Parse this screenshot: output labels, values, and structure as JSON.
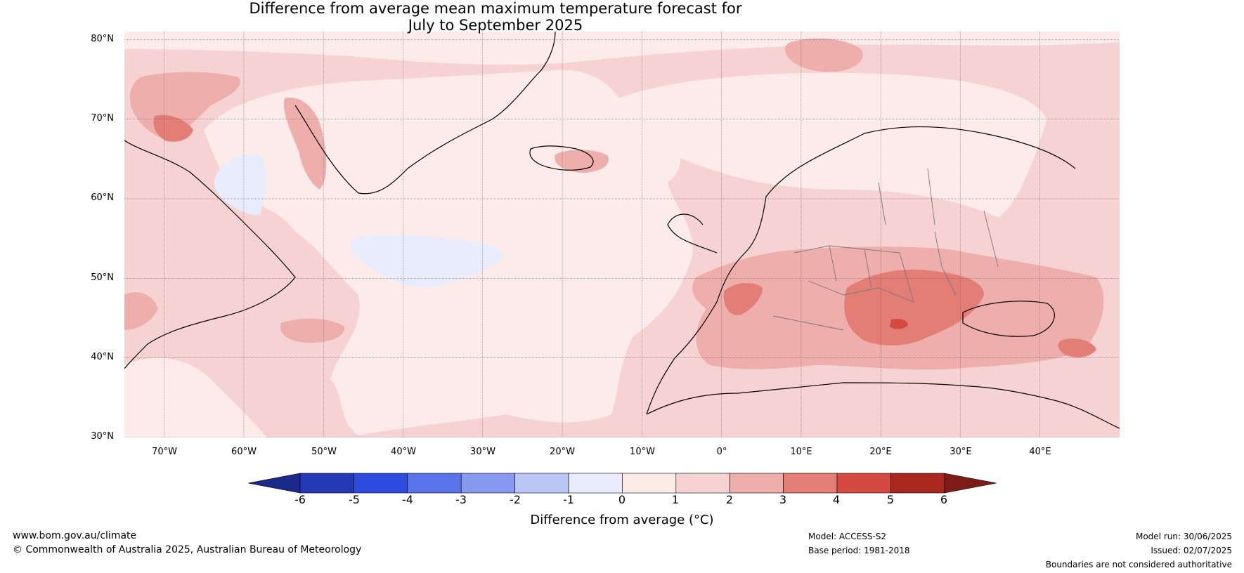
{
  "title": {
    "line1": "Difference from average mean maximum temperature forecast for",
    "line2": "July to September 2025"
  },
  "map": {
    "lat_labels": [
      "80°N",
      "70°N",
      "60°N",
      "50°N",
      "40°N",
      "30°N"
    ],
    "lon_labels": [
      "70°W",
      "60°W",
      "50°W",
      "40°W",
      "30°W",
      "20°W",
      "10°W",
      "0°",
      "10°E",
      "20°E",
      "30°E",
      "40°E"
    ],
    "lat_range": [
      30,
      81
    ],
    "lon_range": [
      -75,
      50
    ],
    "projection": "equirectangular",
    "gridlines": true
  },
  "colorbar": {
    "ticks": [
      "-6",
      "-5",
      "-4",
      "-3",
      "-2",
      "-1",
      "0",
      "1",
      "2",
      "3",
      "4",
      "5",
      "6"
    ],
    "colors": [
      "#1b2a8a",
      "#2439b5",
      "#2e4be0",
      "#5a73e8",
      "#8699ee",
      "#bcc6f5",
      "#e9ecfc",
      "#fcebe8",
      "#f6d3d2",
      "#eeaeab",
      "#e37e76",
      "#d44a40",
      "#a8271f",
      "#7b1c18"
    ],
    "label": "Difference from average (°C)"
  },
  "footer": {
    "website": "www.bom.gov.au/climate",
    "copyright": "© Commonwealth of Australia 2025, Australian Bureau of Meteorology",
    "model": "Model: ACCESS-S2",
    "base_period": "Base period: 1981-2018",
    "model_run": "Model run: 30/06/2025",
    "issued": "Issued: 02/07/2025",
    "disclaimer": "Boundaries are not considered authoritative"
  }
}
